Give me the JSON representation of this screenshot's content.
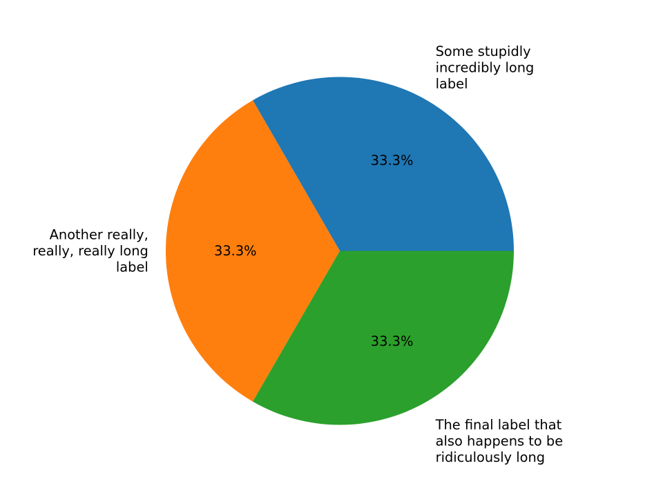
{
  "chart_data": {
    "type": "pie",
    "labels": [
      [
        "Some stupidly",
        "incredibly long",
        "label"
      ],
      [
        "Another really,",
        "really, really long",
        "label"
      ],
      [
        "The final label that",
        "also happens to be",
        "ridiculously long"
      ]
    ],
    "values": [
      1,
      1,
      1
    ],
    "percent_labels": [
      "33.3%",
      "33.3%",
      "33.3%"
    ],
    "colors": [
      "#1f77b4",
      "#ff7f0e",
      "#2ca02c"
    ],
    "start_angle_deg": 0,
    "direction": "counterclockwise"
  }
}
